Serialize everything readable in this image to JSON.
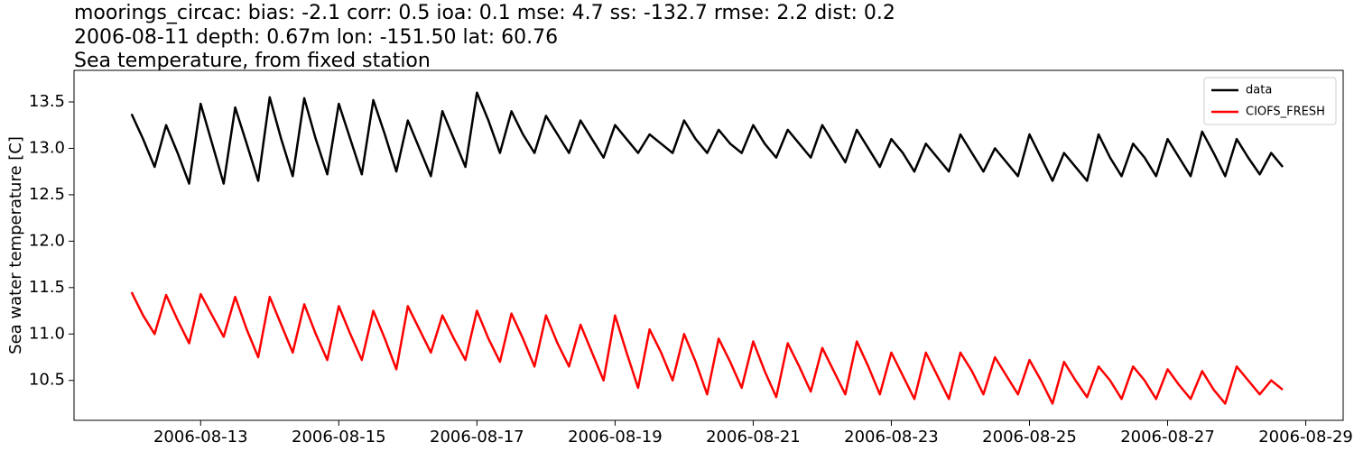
{
  "chart_data": {
    "type": "line",
    "title_lines": [
      "moorings_circac: bias: -2.1  corr: 0.5  ioa: 0.1  mse: 4.7  ss: -132.7  rmse: 2.2  dist: 0.2",
      "2006-08-11 depth: 0.67m lon: -151.50 lat: 60.76",
      "Sea temperature, from fixed station"
    ],
    "ylabel": "Sea water temperature [C]",
    "legend": "upper right",
    "x": [
      "2006-08-12 00:00",
      "2006-08-12 04:00",
      "2006-08-12 08:00",
      "2006-08-12 12:00",
      "2006-08-12 16:00",
      "2006-08-12 20:00",
      "2006-08-13 00:00",
      "2006-08-13 04:00",
      "2006-08-13 08:00",
      "2006-08-13 12:00",
      "2006-08-13 16:00",
      "2006-08-13 20:00",
      "2006-08-14 00:00",
      "2006-08-14 04:00",
      "2006-08-14 08:00",
      "2006-08-14 12:00",
      "2006-08-14 16:00",
      "2006-08-14 20:00",
      "2006-08-15 00:00",
      "2006-08-15 04:00",
      "2006-08-15 08:00",
      "2006-08-15 12:00",
      "2006-08-15 16:00",
      "2006-08-15 20:00",
      "2006-08-16 00:00",
      "2006-08-16 04:00",
      "2006-08-16 08:00",
      "2006-08-16 12:00",
      "2006-08-16 16:00",
      "2006-08-16 20:00",
      "2006-08-17 00:00",
      "2006-08-17 04:00",
      "2006-08-17 08:00",
      "2006-08-17 12:00",
      "2006-08-17 16:00",
      "2006-08-17 20:00",
      "2006-08-18 00:00",
      "2006-08-18 04:00",
      "2006-08-18 08:00",
      "2006-08-18 12:00",
      "2006-08-18 16:00",
      "2006-08-18 20:00",
      "2006-08-19 00:00",
      "2006-08-19 04:00",
      "2006-08-19 08:00",
      "2006-08-19 12:00",
      "2006-08-19 16:00",
      "2006-08-19 20:00",
      "2006-08-20 00:00",
      "2006-08-20 04:00",
      "2006-08-20 08:00",
      "2006-08-20 12:00",
      "2006-08-20 16:00",
      "2006-08-20 20:00",
      "2006-08-21 00:00",
      "2006-08-21 04:00",
      "2006-08-21 08:00",
      "2006-08-21 12:00",
      "2006-08-21 16:00",
      "2006-08-21 20:00",
      "2006-08-22 00:00",
      "2006-08-22 04:00",
      "2006-08-22 08:00",
      "2006-08-22 12:00",
      "2006-08-22 16:00",
      "2006-08-22 20:00",
      "2006-08-23 00:00",
      "2006-08-23 04:00",
      "2006-08-23 08:00",
      "2006-08-23 12:00",
      "2006-08-23 16:00",
      "2006-08-23 20:00",
      "2006-08-24 00:00",
      "2006-08-24 04:00",
      "2006-08-24 08:00",
      "2006-08-24 12:00",
      "2006-08-24 16:00",
      "2006-08-24 20:00",
      "2006-08-25 00:00",
      "2006-08-25 04:00",
      "2006-08-25 08:00",
      "2006-08-25 12:00",
      "2006-08-25 16:00",
      "2006-08-25 20:00",
      "2006-08-26 00:00",
      "2006-08-26 04:00",
      "2006-08-26 08:00",
      "2006-08-26 12:00",
      "2006-08-26 16:00",
      "2006-08-26 20:00",
      "2006-08-27 00:00",
      "2006-08-27 04:00",
      "2006-08-27 08:00",
      "2006-08-27 12:00",
      "2006-08-27 16:00",
      "2006-08-27 20:00",
      "2006-08-28 00:00",
      "2006-08-28 04:00",
      "2006-08-28 08:00",
      "2006-08-28 12:00",
      "2006-08-28 16:00"
    ],
    "series": [
      {
        "name": "data",
        "color": "#000000",
        "values": [
          13.37,
          13.1,
          12.8,
          13.25,
          12.95,
          12.62,
          13.48,
          13.05,
          12.62,
          13.44,
          13.05,
          12.65,
          13.55,
          13.1,
          12.7,
          13.54,
          13.1,
          12.72,
          13.48,
          13.1,
          12.72,
          13.52,
          13.15,
          12.75,
          13.3,
          13.0,
          12.7,
          13.4,
          13.1,
          12.8,
          13.6,
          13.3,
          12.95,
          13.4,
          13.15,
          12.95,
          13.35,
          13.15,
          12.95,
          13.3,
          13.1,
          12.9,
          13.25,
          13.1,
          12.95,
          13.15,
          13.05,
          12.95,
          13.3,
          13.1,
          12.95,
          13.2,
          13.05,
          12.95,
          13.25,
          13.05,
          12.9,
          13.2,
          13.05,
          12.9,
          13.25,
          13.05,
          12.85,
          13.2,
          13.0,
          12.8,
          13.1,
          12.95,
          12.75,
          13.05,
          12.9,
          12.75,
          13.15,
          12.95,
          12.75,
          13.0,
          12.85,
          12.7,
          13.15,
          12.9,
          12.65,
          12.95,
          12.8,
          12.65,
          13.15,
          12.9,
          12.7,
          13.05,
          12.9,
          12.7,
          13.1,
          12.9,
          12.7,
          13.18,
          12.95,
          12.7,
          13.1,
          12.9,
          12.72,
          12.95,
          12.8
        ]
      },
      {
        "name": "CIOFS_FRESH",
        "color": "#ff0000",
        "values": [
          11.45,
          11.2,
          11.0,
          11.42,
          11.15,
          10.9,
          11.43,
          11.2,
          10.97,
          11.4,
          11.05,
          10.75,
          11.4,
          11.1,
          10.8,
          11.32,
          11.0,
          10.72,
          11.3,
          11.0,
          10.72,
          11.25,
          10.95,
          10.62,
          11.3,
          11.05,
          10.8,
          11.2,
          10.95,
          10.72,
          11.25,
          10.95,
          10.7,
          11.22,
          10.95,
          10.65,
          11.2,
          10.9,
          10.65,
          11.1,
          10.8,
          10.5,
          11.2,
          10.8,
          10.42,
          11.05,
          10.8,
          10.5,
          11.0,
          10.7,
          10.35,
          10.95,
          10.7,
          10.42,
          10.92,
          10.6,
          10.32,
          10.9,
          10.65,
          10.38,
          10.85,
          10.6,
          10.35,
          10.92,
          10.65,
          10.35,
          10.8,
          10.55,
          10.3,
          10.8,
          10.55,
          10.3,
          10.8,
          10.6,
          10.35,
          10.75,
          10.55,
          10.35,
          10.72,
          10.5,
          10.25,
          10.7,
          10.5,
          10.32,
          10.65,
          10.5,
          10.3,
          10.65,
          10.5,
          10.3,
          10.62,
          10.45,
          10.3,
          10.6,
          10.4,
          10.25,
          10.65,
          10.5,
          10.35,
          10.5,
          10.4
        ]
      }
    ],
    "xlim": [
      "2006-08-11 04:00",
      "2006-08-29 13:00"
    ],
    "xticks": [
      "2006-08-13",
      "2006-08-15",
      "2006-08-17",
      "2006-08-19",
      "2006-08-21",
      "2006-08-23",
      "2006-08-25",
      "2006-08-27",
      "2006-08-29"
    ],
    "ylim": [
      10.07,
      13.84
    ],
    "yticks": [
      10.5,
      {
        "value": 11.0,
        "label": "11.0"
      },
      11.5,
      {
        "value": 12.0,
        "label": "12.0"
      },
      12.5,
      {
        "value": 13.0,
        "label": "13.0"
      },
      13.5
    ]
  }
}
